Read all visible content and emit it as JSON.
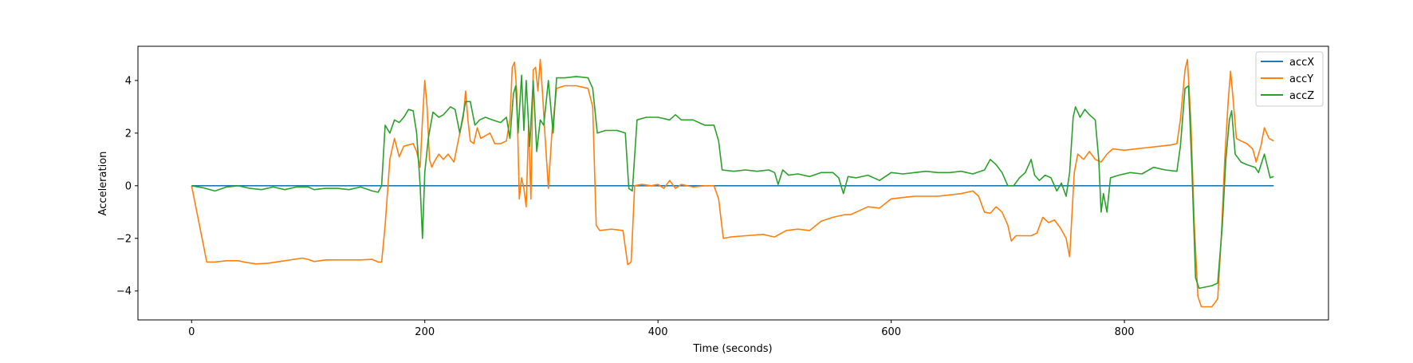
{
  "chart_data": {
    "type": "line",
    "title": "",
    "xlabel": "Time (seconds)",
    "ylabel": "Acceleration",
    "xlim": [
      -46,
      975
    ],
    "ylim": [
      -5.1,
      5.3
    ],
    "xticks": [
      0,
      200,
      400,
      600,
      800
    ],
    "yticks": [
      -4,
      -2,
      0,
      2,
      4
    ],
    "grid": false,
    "legend_position": "top-right",
    "series": [
      {
        "name": "accX",
        "color": "#1f77b4",
        "points": [
          [
            0,
            0
          ],
          [
            928,
            0
          ]
        ]
      },
      {
        "name": "accY",
        "color": "#ff7f0e",
        "points": [
          [
            0,
            0
          ],
          [
            13,
            -2.9
          ],
          [
            20,
            -2.9
          ],
          [
            30,
            -2.85
          ],
          [
            40,
            -2.85
          ],
          [
            45,
            -2.9
          ],
          [
            55,
            -2.97
          ],
          [
            65,
            -2.95
          ],
          [
            80,
            -2.85
          ],
          [
            95,
            -2.75
          ],
          [
            100,
            -2.8
          ],
          [
            105,
            -2.88
          ],
          [
            115,
            -2.82
          ],
          [
            130,
            -2.82
          ],
          [
            145,
            -2.82
          ],
          [
            155,
            -2.8
          ],
          [
            160,
            -2.9
          ],
          [
            163,
            -2.9
          ],
          [
            166,
            -1.5
          ],
          [
            170,
            1.0
          ],
          [
            174,
            1.8
          ],
          [
            178,
            1.1
          ],
          [
            182,
            1.5
          ],
          [
            186,
            1.55
          ],
          [
            190,
            1.6
          ],
          [
            193,
            1.3
          ],
          [
            196,
            0.7
          ],
          [
            198,
            2.5
          ],
          [
            200,
            4.0
          ],
          [
            202,
            3.0
          ],
          [
            204,
            1.0
          ],
          [
            206,
            0.7
          ],
          [
            208,
            0.9
          ],
          [
            212,
            1.2
          ],
          [
            216,
            1.0
          ],
          [
            220,
            1.2
          ],
          [
            225,
            0.9
          ],
          [
            230,
            2.0
          ],
          [
            233,
            2.6
          ],
          [
            235,
            3.6
          ],
          [
            237,
            2.5
          ],
          [
            239,
            1.7
          ],
          [
            242,
            1.6
          ],
          [
            245,
            2.2
          ],
          [
            248,
            1.8
          ],
          [
            252,
            1.9
          ],
          [
            256,
            2.0
          ],
          [
            260,
            1.6
          ],
          [
            265,
            1.6
          ],
          [
            270,
            1.7
          ],
          [
            273,
            2.5
          ],
          [
            275,
            4.5
          ],
          [
            277,
            4.7
          ],
          [
            279,
            3.5
          ],
          [
            281,
            -0.5
          ],
          [
            283,
            0.3
          ],
          [
            285,
            -0.1
          ],
          [
            287,
            -0.8
          ],
          [
            289,
            2.3
          ],
          [
            291,
            -0.5
          ],
          [
            293,
            4.4
          ],
          [
            295,
            4.5
          ],
          [
            297,
            3.6
          ],
          [
            299,
            4.8
          ],
          [
            301,
            3.5
          ],
          [
            303,
            2.0
          ],
          [
            306,
            -0.1
          ],
          [
            309,
            2.0
          ],
          [
            313,
            3.7
          ],
          [
            320,
            3.8
          ],
          [
            330,
            3.8
          ],
          [
            340,
            3.7
          ],
          [
            344,
            3.0
          ],
          [
            347,
            -1.5
          ],
          [
            350,
            -1.7
          ],
          [
            360,
            -1.65
          ],
          [
            370,
            -1.7
          ],
          [
            374,
            -3.0
          ],
          [
            377,
            -2.9
          ],
          [
            380,
            0
          ],
          [
            386,
            0.05
          ],
          [
            394,
            0.0
          ],
          [
            400,
            0.05
          ],
          [
            405,
            -0.1
          ],
          [
            410,
            0.2
          ],
          [
            415,
            -0.1
          ],
          [
            420,
            0.05
          ],
          [
            430,
            -0.05
          ],
          [
            440,
            0.0
          ],
          [
            448,
            0.0
          ],
          [
            452,
            -0.5
          ],
          [
            456,
            -2.0
          ],
          [
            462,
            -1.95
          ],
          [
            475,
            -1.9
          ],
          [
            490,
            -1.85
          ],
          [
            500,
            -1.95
          ],
          [
            510,
            -1.7
          ],
          [
            520,
            -1.65
          ],
          [
            530,
            -1.7
          ],
          [
            540,
            -1.35
          ],
          [
            550,
            -1.2
          ],
          [
            560,
            -1.1
          ],
          [
            565,
            -1.1
          ],
          [
            570,
            -1.0
          ],
          [
            580,
            -0.8
          ],
          [
            590,
            -0.85
          ],
          [
            600,
            -0.5
          ],
          [
            610,
            -0.45
          ],
          [
            620,
            -0.4
          ],
          [
            640,
            -0.4
          ],
          [
            660,
            -0.3
          ],
          [
            670,
            -0.2
          ],
          [
            675,
            -0.4
          ],
          [
            680,
            -1.0
          ],
          [
            685,
            -1.05
          ],
          [
            690,
            -0.8
          ],
          [
            695,
            -1.0
          ],
          [
            700,
            -1.5
          ],
          [
            703,
            -2.1
          ],
          [
            707,
            -1.9
          ],
          [
            720,
            -1.9
          ],
          [
            725,
            -1.8
          ],
          [
            730,
            -1.2
          ],
          [
            735,
            -1.4
          ],
          [
            740,
            -1.3
          ],
          [
            745,
            -1.6
          ],
          [
            750,
            -2.0
          ],
          [
            753,
            -2.7
          ],
          [
            757,
            0.5
          ],
          [
            760,
            1.2
          ],
          [
            765,
            1.0
          ],
          [
            770,
            1.3
          ],
          [
            775,
            1.0
          ],
          [
            780,
            0.9
          ],
          [
            785,
            1.2
          ],
          [
            790,
            1.4
          ],
          [
            800,
            1.35
          ],
          [
            810,
            1.4
          ],
          [
            820,
            1.45
          ],
          [
            830,
            1.5
          ],
          [
            840,
            1.55
          ],
          [
            845,
            1.6
          ],
          [
            848,
            2.5
          ],
          [
            852,
            4.4
          ],
          [
            854,
            4.8
          ],
          [
            857,
            2.5
          ],
          [
            860,
            -1.5
          ],
          [
            863,
            -4.2
          ],
          [
            866,
            -4.6
          ],
          [
            875,
            -4.6
          ],
          [
            880,
            -4.3
          ],
          [
            883,
            -2.0
          ],
          [
            886,
            1.0
          ],
          [
            889,
            3.2
          ],
          [
            891,
            4.35
          ],
          [
            893,
            3.4
          ],
          [
            896,
            1.8
          ],
          [
            900,
            1.7
          ],
          [
            905,
            1.6
          ],
          [
            910,
            1.4
          ],
          [
            913,
            0.9
          ],
          [
            917,
            1.5
          ],
          [
            920,
            2.2
          ],
          [
            924,
            1.8
          ],
          [
            928,
            1.7
          ]
        ]
      },
      {
        "name": "accZ",
        "color": "#2ca02c",
        "points": [
          [
            0,
            0
          ],
          [
            10,
            -0.08
          ],
          [
            20,
            -0.2
          ],
          [
            30,
            -0.05
          ],
          [
            40,
            0.0
          ],
          [
            50,
            -0.1
          ],
          [
            60,
            -0.15
          ],
          [
            70,
            -0.05
          ],
          [
            80,
            -0.15
          ],
          [
            90,
            -0.05
          ],
          [
            100,
            -0.05
          ],
          [
            105,
            -0.15
          ],
          [
            115,
            -0.1
          ],
          [
            125,
            -0.1
          ],
          [
            135,
            -0.15
          ],
          [
            145,
            -0.05
          ],
          [
            155,
            -0.2
          ],
          [
            160,
            -0.25
          ],
          [
            163,
            0.0
          ],
          [
            166,
            2.3
          ],
          [
            170,
            2.0
          ],
          [
            174,
            2.5
          ],
          [
            178,
            2.4
          ],
          [
            182,
            2.6
          ],
          [
            186,
            2.9
          ],
          [
            190,
            2.85
          ],
          [
            193,
            2.0
          ],
          [
            196,
            0.0
          ],
          [
            198,
            -2.0
          ],
          [
            200,
            0.5
          ],
          [
            203,
            1.8
          ],
          [
            207,
            2.8
          ],
          [
            212,
            2.6
          ],
          [
            216,
            2.7
          ],
          [
            222,
            3.0
          ],
          [
            226,
            2.9
          ],
          [
            230,
            2.0
          ],
          [
            235,
            3.2
          ],
          [
            239,
            3.2
          ],
          [
            243,
            2.3
          ],
          [
            247,
            2.5
          ],
          [
            252,
            2.6
          ],
          [
            258,
            2.5
          ],
          [
            265,
            2.4
          ],
          [
            270,
            2.6
          ],
          [
            273,
            1.8
          ],
          [
            276,
            3.5
          ],
          [
            278,
            3.8
          ],
          [
            280,
            2.0
          ],
          [
            283,
            4.2
          ],
          [
            285,
            2.1
          ],
          [
            287,
            4.0
          ],
          [
            290,
            1.5
          ],
          [
            293,
            4.0
          ],
          [
            296,
            1.3
          ],
          [
            299,
            2.5
          ],
          [
            302,
            2.3
          ],
          [
            306,
            4.0
          ],
          [
            310,
            2.0
          ],
          [
            313,
            4.1
          ],
          [
            320,
            4.1
          ],
          [
            330,
            4.15
          ],
          [
            340,
            4.1
          ],
          [
            344,
            3.7
          ],
          [
            348,
            2.0
          ],
          [
            355,
            2.1
          ],
          [
            365,
            2.1
          ],
          [
            372,
            2.0
          ],
          [
            375,
            -0.1
          ],
          [
            378,
            -0.2
          ],
          [
            382,
            2.5
          ],
          [
            390,
            2.6
          ],
          [
            400,
            2.6
          ],
          [
            410,
            2.5
          ],
          [
            415,
            2.7
          ],
          [
            420,
            2.5
          ],
          [
            430,
            2.5
          ],
          [
            440,
            2.3
          ],
          [
            448,
            2.3
          ],
          [
            452,
            1.7
          ],
          [
            455,
            0.6
          ],
          [
            465,
            0.55
          ],
          [
            475,
            0.6
          ],
          [
            485,
            0.55
          ],
          [
            495,
            0.6
          ],
          [
            500,
            0.5
          ],
          [
            503,
            0.05
          ],
          [
            507,
            0.6
          ],
          [
            512,
            0.4
          ],
          [
            520,
            0.45
          ],
          [
            530,
            0.35
          ],
          [
            540,
            0.5
          ],
          [
            550,
            0.5
          ],
          [
            555,
            0.3
          ],
          [
            559,
            -0.3
          ],
          [
            563,
            0.35
          ],
          [
            570,
            0.3
          ],
          [
            580,
            0.4
          ],
          [
            590,
            0.2
          ],
          [
            600,
            0.5
          ],
          [
            610,
            0.45
          ],
          [
            620,
            0.5
          ],
          [
            630,
            0.55
          ],
          [
            640,
            0.5
          ],
          [
            650,
            0.5
          ],
          [
            660,
            0.55
          ],
          [
            670,
            0.45
          ],
          [
            680,
            0.6
          ],
          [
            685,
            1.0
          ],
          [
            690,
            0.8
          ],
          [
            695,
            0.5
          ],
          [
            700,
            0.0
          ],
          [
            705,
            0.0
          ],
          [
            710,
            0.3
          ],
          [
            715,
            0.5
          ],
          [
            720,
            1.0
          ],
          [
            723,
            0.4
          ],
          [
            727,
            0.2
          ],
          [
            732,
            0.4
          ],
          [
            737,
            0.3
          ],
          [
            742,
            -0.2
          ],
          [
            746,
            0.1
          ],
          [
            750,
            -0.4
          ],
          [
            753,
            0.5
          ],
          [
            756,
            2.6
          ],
          [
            758,
            3.0
          ],
          [
            762,
            2.6
          ],
          [
            766,
            2.9
          ],
          [
            770,
            2.7
          ],
          [
            775,
            2.5
          ],
          [
            778,
            1.0
          ],
          [
            780,
            -1.0
          ],
          [
            782,
            -0.3
          ],
          [
            785,
            -1.0
          ],
          [
            788,
            0.3
          ],
          [
            795,
            0.4
          ],
          [
            805,
            0.5
          ],
          [
            815,
            0.45
          ],
          [
            825,
            0.7
          ],
          [
            835,
            0.6
          ],
          [
            845,
            0.55
          ],
          [
            848,
            1.5
          ],
          [
            852,
            3.7
          ],
          [
            855,
            3.8
          ],
          [
            858,
            0.5
          ],
          [
            861,
            -3.5
          ],
          [
            864,
            -3.9
          ],
          [
            875,
            -3.8
          ],
          [
            880,
            -3.7
          ],
          [
            884,
            -1.5
          ],
          [
            887,
            1.0
          ],
          [
            890,
            2.5
          ],
          [
            892,
            2.85
          ],
          [
            895,
            1.2
          ],
          [
            900,
            0.9
          ],
          [
            905,
            0.8
          ],
          [
            912,
            0.7
          ],
          [
            915,
            0.5
          ],
          [
            920,
            1.2
          ],
          [
            925,
            0.3
          ],
          [
            928,
            0.35
          ]
        ]
      }
    ]
  }
}
